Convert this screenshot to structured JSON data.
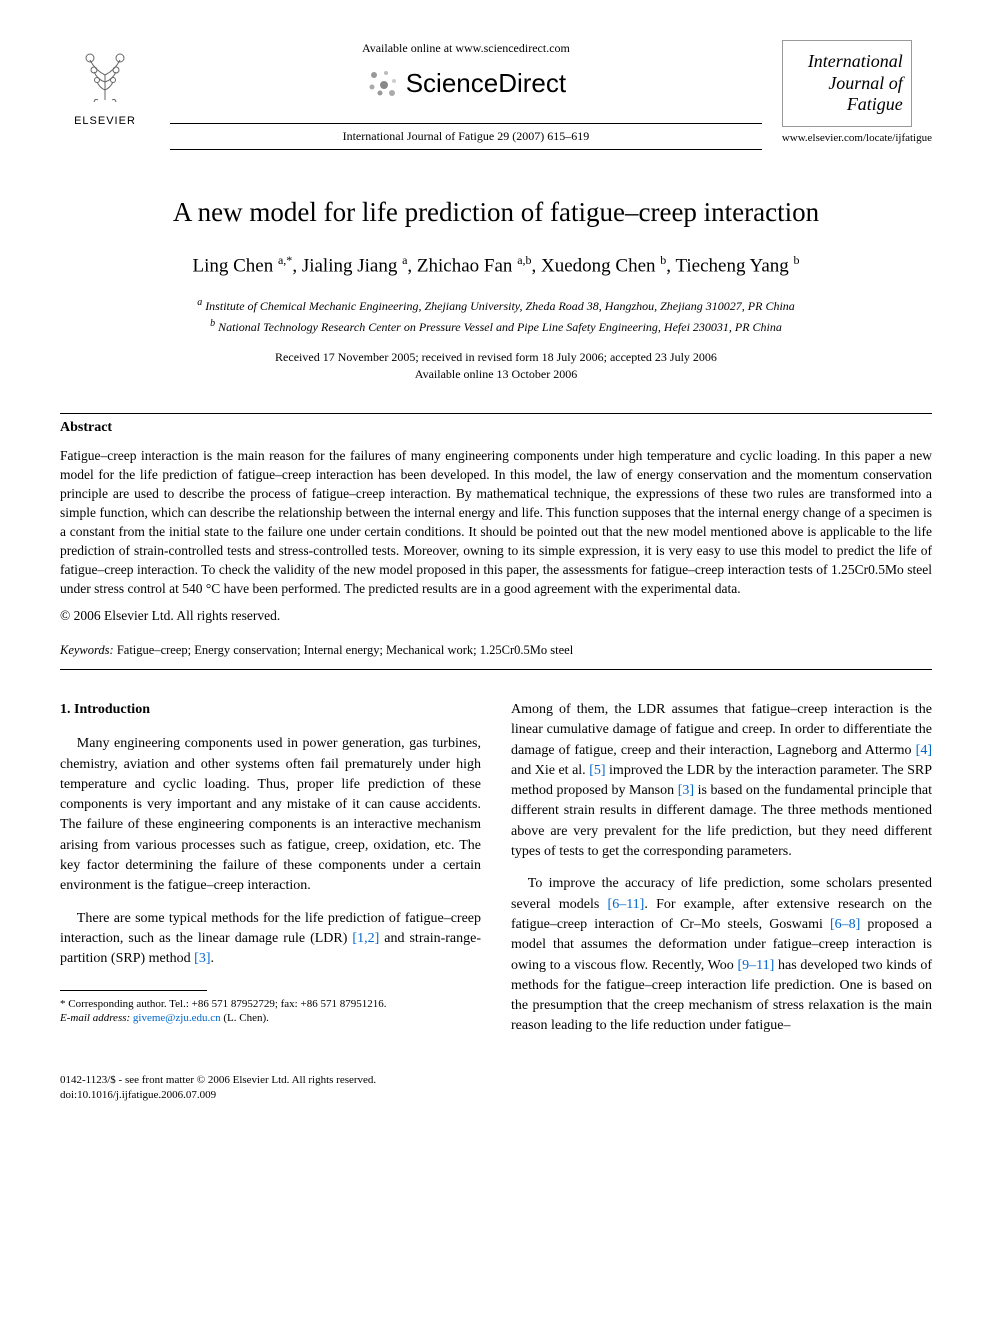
{
  "header": {
    "elsevier_label": "ELSEVIER",
    "available_online": "Available online at www.sciencedirect.com",
    "sciencedirect": "ScienceDirect",
    "journal_reference": "International Journal of Fatigue 29 (2007) 615–619",
    "journal_cover_lines": [
      "International",
      "Journal of",
      "Fatigue"
    ],
    "journal_url": "www.elsevier.com/locate/ijfatigue"
  },
  "article": {
    "title": "A new model for life prediction of fatigue–creep interaction",
    "authors_html": "Ling Chen <sup>a,*</sup>, Jialing Jiang <sup>a</sup>, Zhichao Fan <sup>a,b</sup>, Xuedong Chen <sup>b</sup>, Tiecheng Yang <sup>b</sup>",
    "affiliations": [
      "a Institute of Chemical Mechanic Engineering, Zhejiang University, Zheda Road 38, Hangzhou, Zhejiang 310027, PR China",
      "b National Technology Research Center on Pressure Vessel and Pipe Line Safety Engineering, Hefei 230031, PR China"
    ],
    "dates_line1": "Received 17 November 2005; received in revised form 18 July 2006; accepted 23 July 2006",
    "dates_line2": "Available online 13 October 2006"
  },
  "abstract": {
    "heading": "Abstract",
    "text": "Fatigue–creep interaction is the main reason for the failures of many engineering components under high temperature and cyclic loading. In this paper a new model for the life prediction of fatigue–creep interaction has been developed. In this model, the law of energy conservation and the momentum conservation principle are used to describe the process of fatigue–creep interaction. By mathematical technique, the expressions of these two rules are transformed into a simple function, which can describe the relationship between the internal energy and life. This function supposes that the internal energy change of a specimen is a constant from the initial state to the failure one under certain conditions. It should be pointed out that the new model mentioned above is applicable to the life prediction of strain-controlled tests and stress-controlled tests. Moreover, owning to its simple expression, it is very easy to use this model to predict the life of fatigue–creep interaction. To check the validity of the new model proposed in this paper, the assessments for fatigue–creep interaction tests of 1.25Cr0.5Mo steel under stress control at 540 °C have been performed. The predicted results are in a good agreement with the experimental data.",
    "copyright": "© 2006 Elsevier Ltd. All rights reserved."
  },
  "keywords": {
    "label": "Keywords:",
    "text": " Fatigue–creep; Energy conservation; Internal energy; Mechanical work; 1.25Cr0.5Mo steel"
  },
  "body": {
    "section_heading": "1. Introduction",
    "col1_p1": "Many engineering components used in power generation, gas turbines, chemistry, aviation and other systems often fail prematurely under high temperature and cyclic loading. Thus, proper life prediction of these components is very important and any mistake of it can cause accidents. The failure of these engineering components is an interactive mechanism arising from various processes such as fatigue, creep, oxidation, etc. The key factor determining the failure of these components under a certain environment is the fatigue–creep interaction.",
    "col1_p2_pre": "There are some typical methods for the life prediction of fatigue–creep interaction, such as the linear damage rule (LDR) ",
    "col1_p2_ref1": "[1,2]",
    "col1_p2_mid": " and strain-range-partition (SRP) method ",
    "col1_p2_ref2": "[3]",
    "col1_p2_post": ".",
    "col2_p1_pre": "Among of them, the LDR assumes that fatigue–creep interaction is the linear cumulative damage of fatigue and creep. In order to differentiate the damage of fatigue, creep and their interaction, Lagneborg and Attermo ",
    "col2_p1_ref1": "[4]",
    "col2_p1_mid1": " and Xie et al. ",
    "col2_p1_ref2": "[5]",
    "col2_p1_mid2": " improved the LDR by the interaction parameter. The SRP method proposed by Manson ",
    "col2_p1_ref3": "[3]",
    "col2_p1_post": " is based on the fundamental principle that different strain results in different damage. The three methods mentioned above are very prevalent for the life prediction, but they need different types of tests to get the corresponding parameters.",
    "col2_p2_pre": "To improve the accuracy of life prediction, some scholars presented several models ",
    "col2_p2_ref1": "[6–11]",
    "col2_p2_mid1": ". For example, after extensive research on the fatigue–creep interaction of Cr–Mo steels, Goswami ",
    "col2_p2_ref2": "[6–8]",
    "col2_p2_mid2": " proposed a model that assumes the deformation under fatigue–creep interaction is owing to a viscous flow. Recently, Woo ",
    "col2_p2_ref3": "[9–11]",
    "col2_p2_post": " has developed two kinds of methods for the fatigue–creep interaction life prediction. One is based on the presumption that the creep mechanism of stress relaxation is the main reason leading to the life reduction under fatigue–"
  },
  "footnote": {
    "corresponding": "* Corresponding author. Tel.: +86 571 87952729; fax: +86 571 87951216.",
    "email_label": "E-mail address:",
    "email": "giveme@zju.edu.cn",
    "email_author": " (L. Chen)."
  },
  "footer": {
    "issn": "0142-1123/$ - see front matter © 2006 Elsevier Ltd. All rights reserved.",
    "doi": "doi:10.1016/j.ijfatigue.2006.07.009"
  },
  "colors": {
    "link": "#0066cc",
    "text": "#000000",
    "background": "#ffffff",
    "rule": "#000000"
  }
}
